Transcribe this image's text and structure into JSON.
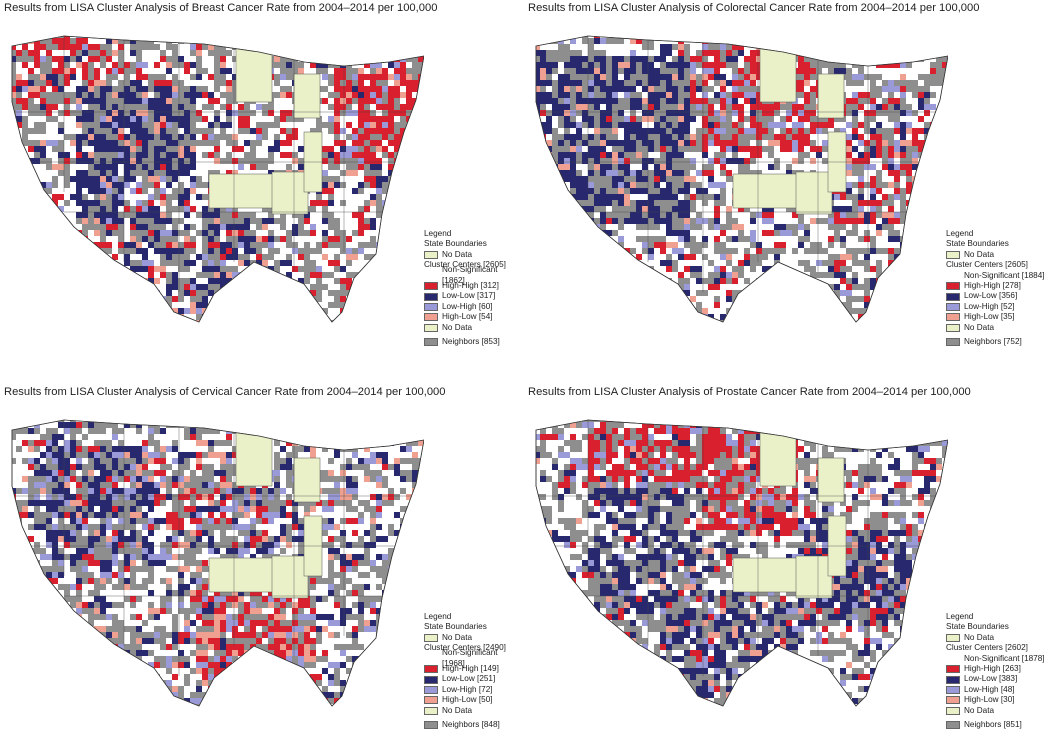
{
  "panels": [
    {
      "title": "Results from LISA Cluster Analysis of Breast Cancer Rate from 2004–2014 per 100,000",
      "legend": {
        "heading": "Legend",
        "state_boundaries": "State Boundaries",
        "state_no_data": "No Data",
        "cluster_centers": "Cluster Centers [2605]",
        "categories": [
          {
            "label": "Non-Significant [1862]",
            "color": "none"
          },
          {
            "label": "High-High [312]",
            "color": "#d8202e"
          },
          {
            "label": "Low-Low [317]",
            "color": "#27286e"
          },
          {
            "label": "Low-High [60]",
            "color": "#9a9ad8"
          },
          {
            "label": "High-Low [54]",
            "color": "#f0a090"
          },
          {
            "label": "No Data",
            "color": "none"
          }
        ],
        "neighbors": "Neighbors [853]"
      }
    },
    {
      "title": "Results from LISA Cluster Analysis of Colorectal Cancer Rate from 2004–2014 per 100,000",
      "legend": {
        "heading": "Legend",
        "state_boundaries": "State Boundaries",
        "state_no_data": "No Data",
        "cluster_centers": "Cluster Centers [2605]",
        "categories": [
          {
            "label": "Non-Significant [1884]",
            "color": "none"
          },
          {
            "label": "High-High [278]",
            "color": "#d8202e"
          },
          {
            "label": "Low-Low [356]",
            "color": "#27286e"
          },
          {
            "label": "Low-High [52]",
            "color": "#9a9ad8"
          },
          {
            "label": "High-Low [35]",
            "color": "#f0a090"
          },
          {
            "label": "No Data",
            "color": "none"
          }
        ],
        "neighbors": "Neighbors [752]"
      }
    },
    {
      "title": "Results from LISA Cluster Analysis of Cervical Cancer Rate from 2004–2014 per 100,000",
      "legend": {
        "heading": "Legend",
        "state_boundaries": "State Boundaries",
        "state_no_data": "No Data",
        "cluster_centers": "Cluster Centers [2490]",
        "categories": [
          {
            "label": "Non-Significant [1968]",
            "color": "none"
          },
          {
            "label": "High-High [149]",
            "color": "#d8202e"
          },
          {
            "label": "Low-Low [251]",
            "color": "#27286e"
          },
          {
            "label": "Low-High [72]",
            "color": "#9a9ad8"
          },
          {
            "label": "High-Low [50]",
            "color": "#f0a090"
          },
          {
            "label": "No Data",
            "color": "none"
          }
        ],
        "neighbors": "Neighbors [848]"
      }
    },
    {
      "title": "Results from LISA Cluster Analysis of Prostate Cancer Rate from 2004–2014 per 100,000",
      "legend": {
        "heading": "Legend",
        "state_boundaries": "State Boundaries",
        "state_no_data": "No Data",
        "cluster_centers": "Cluster Centers [2602]",
        "categories": [
          {
            "label": "Non-Significant [1878]",
            "color": "none"
          },
          {
            "label": "High-High [263]",
            "color": "#d8202e"
          },
          {
            "label": "Low-Low [383]",
            "color": "#27286e"
          },
          {
            "label": "Low-High [48]",
            "color": "#9a9ad8"
          },
          {
            "label": "High-Low [30]",
            "color": "#f0a090"
          },
          {
            "label": "No Data",
            "color": "none"
          }
        ],
        "neighbors": "Neighbors [851]"
      }
    }
  ],
  "colors": {
    "high_high": "#d8202e",
    "low_low": "#27286e",
    "low_high": "#9a9ad8",
    "high_low": "#f0a090",
    "neighbors": "#8e8e8e",
    "no_data_state": "#eaf0c8",
    "non_significant": "#ffffff"
  }
}
